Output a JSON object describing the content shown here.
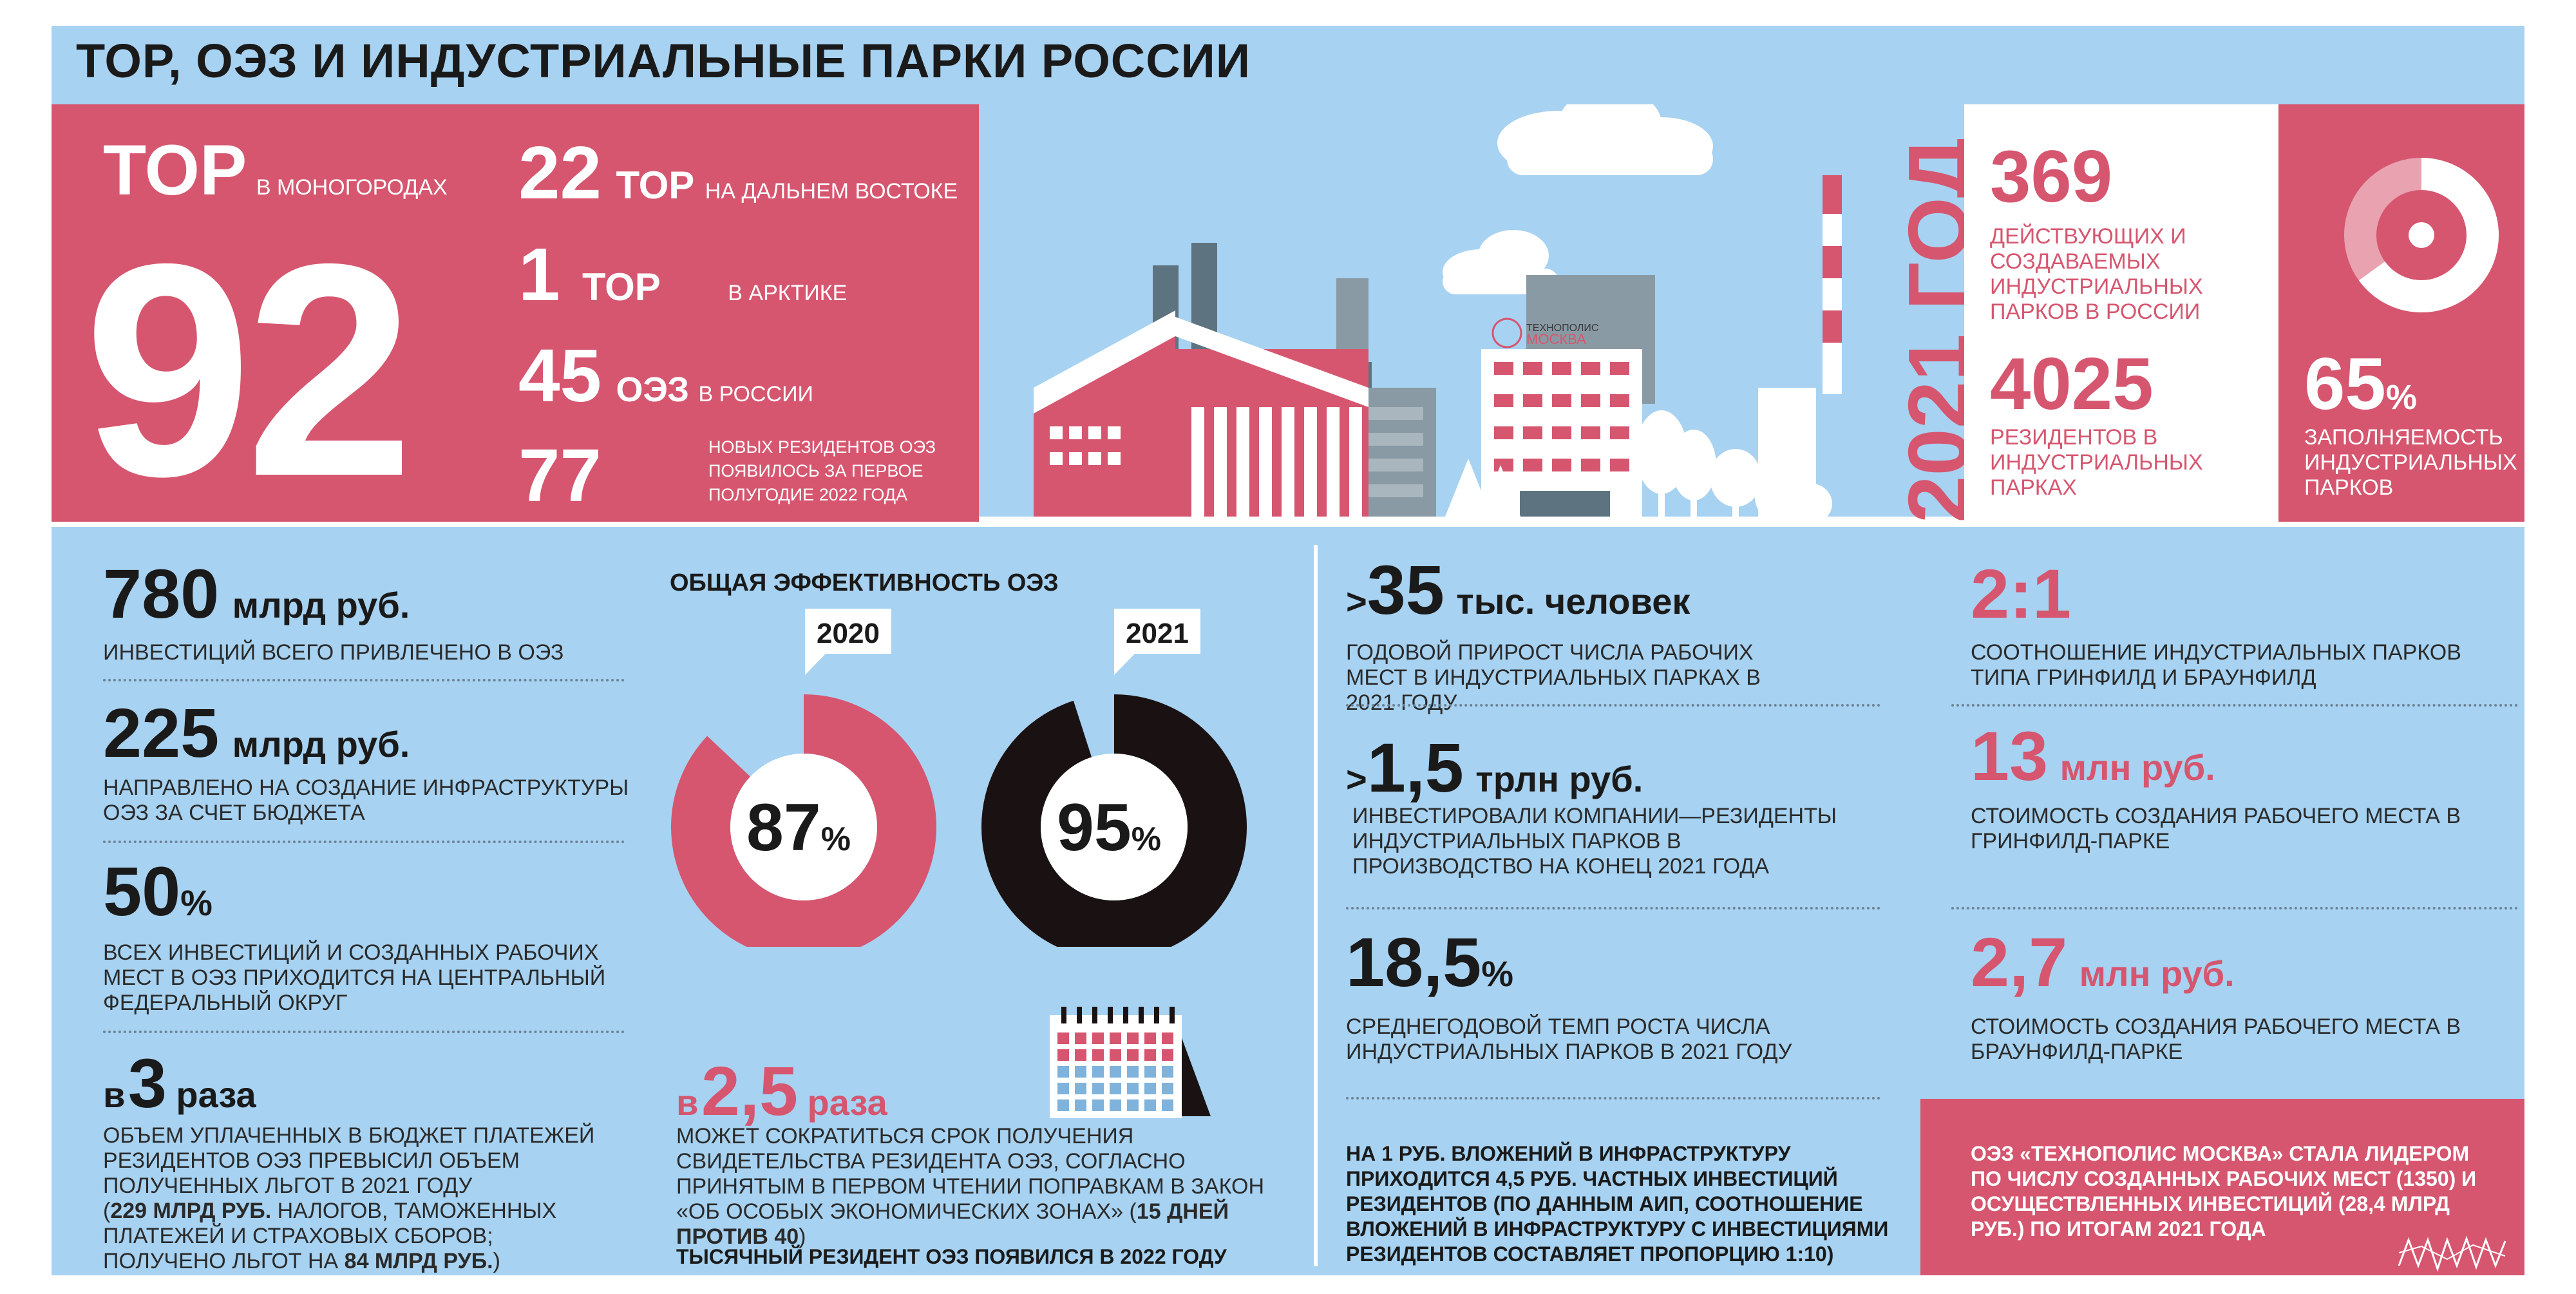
{
  "header": {
    "title": "ТОР, ОЭЗ И ИНДУСТРИАЛЬНЫЕ ПАРКИ РОССИИ"
  },
  "tor_block": {
    "label": "ТОР",
    "label_sub": "В МОНОГОРОДАХ",
    "big_number": "92",
    "rows": [
      {
        "value": "22",
        "unit": "ТОР",
        "desc": "НА ДАЛЬНЕМ ВОСТОКЕ"
      },
      {
        "value": "1",
        "unit": "ТОР",
        "desc": "В АРКТИКЕ"
      },
      {
        "value": "45",
        "unit": "ОЭЗ",
        "desc": "В РОССИИ"
      },
      {
        "value": "77",
        "unit": "",
        "desc": "НОВЫХ РЕЗИДЕНТОВ ОЭЗ ПОЯВИЛОСЬ ЗА ПЕРВОЕ ПОЛУГОДИЕ 2022 ГОДА"
      }
    ]
  },
  "illustration": {
    "building_sign": "ТЕХНОПОЛИС МОСКВА"
  },
  "year_block": {
    "year": "2021 ГОД"
  },
  "parks": {
    "value1": "369",
    "desc1": "ДЕЙСТВУЮЩИХ И СОЗДАВАЕМЫХ ИНДУСТРИАЛЬНЫХ ПАРКОВ В РОССИИ",
    "value2": "4025",
    "desc2": "РЕЗИДЕНТОВ В ИНДУСТРИАЛЬНЫХ ПАРКАХ"
  },
  "occupancy": {
    "value": "65",
    "unit": "%",
    "desc": "ЗАПОЛНЯЕМОСТЬ ИНДУСТРИАЛЬНЫХ ПАРКОВ",
    "fraction": 0.65
  },
  "col1": [
    {
      "value": "780",
      "unit": "млрд руб.",
      "desc": "ИНВЕСТИЦИЙ ВСЕГО ПРИВЛЕЧЕНО В ОЭЗ"
    },
    {
      "value": "225",
      "unit": "млрд руб.",
      "desc": "НАПРАВЛЕНО НА СОЗДАНИЕ ИНФРАСТРУКТУРЫ ОЭЗ ЗА СЧЕТ БЮДЖЕТА"
    },
    {
      "value": "50",
      "unit": "%",
      "desc": "ВСЕХ ИНВЕСТИЦИЙ И СОЗДАННЫХ РАБОЧИХ МЕСТ В ОЭЗ ПРИХОДИТСЯ НА ЦЕНТРАЛЬНЫЙ ФЕДЕРАЛЬНЫЙ ОКРУГ"
    }
  ],
  "times3": {
    "pre": "в",
    "value": "3",
    "unit": "раза",
    "desc": "ОБЪЕМ УПЛАЧЕННЫХ В БЮДЖЕТ ПЛАТЕЖЕЙ РЕЗИДЕНТОВ ОЭЗ ПРЕВЫСИЛ ОБЪЕМ ПОЛУЧЕННЫХ ЛЬГОТ В 2021 ГОДУ",
    "note_a": "(",
    "note_b": "229 МЛРД РУБ.",
    "note_c": " НАЛОГОВ, ТАМОЖЕННЫХ ПЛАТЕЖЕЙ И СТРАХОВЫХ СБОРОВ; ПОЛУЧЕНО ЛЬГОТ НА ",
    "note_d": "84 МЛРД РУБ.",
    "note_e": ")"
  },
  "efficiency": {
    "title": "ОБЩАЯ ЭФФЕКТИВНОСТЬ ОЭЗ",
    "items": [
      {
        "year": "2020",
        "value": "87",
        "unit": "%",
        "fraction": 0.87
      },
      {
        "year": "2021",
        "value": "95",
        "unit": "%",
        "fraction": 0.95
      }
    ]
  },
  "times25": {
    "pre": "в",
    "value": "2,5",
    "unit": "раза",
    "desc_a": "МОЖЕТ СОКРАТИТЬСЯ СРОК ПОЛУЧЕНИЯ СВИДЕТЕЛЬСТВА РЕЗИДЕНТА ОЭЗ, СОГЛАСНО ПРИНЯТЫМ В ПЕРВОМ ЧТЕНИИ ПОПРАВКАМ В ЗАКОН «ОБ ОСОБЫХ ЭКОНОМИЧЕСКИХ ЗОНАХ» (",
    "desc_b": "15 ДНЕЙ ПРОТИВ 40",
    "desc_c": ")",
    "footer": "ТЫСЯЧНЫЙ РЕЗИДЕНТ ОЭЗ ПОЯВИЛСЯ В 2022 ГОДУ"
  },
  "col3": [
    {
      "pre": ">",
      "value": "35",
      "unit": "тыс. человек",
      "desc": "ГОДОВОЙ ПРИРОСТ ЧИСЛА РАБОЧИХ МЕСТ В ИНДУСТРИАЛЬНЫХ ПАРКАХ В 2021 ГОДУ"
    },
    {
      "pre": ">",
      "value": "1,5",
      "unit": "трлн руб.",
      "desc": "ИНВЕСТИРОВАЛИ КОМПАНИИ—РЕЗИДЕНТЫ ИНДУСТРИАЛЬНЫХ ПАРКОВ В ПРОИЗВОДСТВО НА КОНЕЦ 2021 ГОДА"
    },
    {
      "pre": "",
      "value": "18,5",
      "unit": "%",
      "desc": "СРЕДНЕГОДОВОЙ ТЕМП РОСТА ЧИСЛА ИНДУСТРИАЛЬНЫХ ПАРКОВ В 2021 ГОДУ"
    }
  ],
  "col3_note": "НА 1 РУБ. ВЛОЖЕНИЙ В ИНФРАСТРУКТУРУ ПРИХОДИТСЯ 4,5 РУБ. ЧАСТНЫХ ИНВЕСТИЦИЙ РЕЗИДЕНТОВ (ПО ДАННЫМ АИП, СООТНОШЕНИЕ ВЛОЖЕНИЙ В ИНФРАСТРУКТУРУ С ИНВЕСТИЦИЯМИ РЕЗИДЕНТОВ СОСТАВЛЯЕТ ПРОПОРЦИЮ 1:10)",
  "col4": [
    {
      "value": "2:1",
      "unit": "",
      "desc": "СООТНОШЕНИЕ ИНДУСТРИАЛЬНЫХ ПАРКОВ ТИПА ГРИНФИЛД И БРАУНФИЛД"
    },
    {
      "value": "13",
      "unit": "млн руб.",
      "desc": "СТОИМОСТЬ СОЗДАНИЯ РАБОЧЕГО МЕСТА В ГРИНФИЛД-ПАРКЕ"
    },
    {
      "value": "2,7",
      "unit": "млн руб.",
      "desc": "СТОИМОСТЬ СОЗДАНИЯ РАБОЧЕГО МЕСТА В БРАУНФИЛД-ПАРКЕ"
    }
  ],
  "leader": {
    "text": "ОЭЗ «ТЕХНОПОЛИС МОСКВА» СТАЛА ЛИДЕРОМ ПО ЧИСЛУ СОЗДАННЫХ РАБОЧИХ МЕСТ (1350) И ОСУЩЕСТВЛЕННЫХ ИНВЕСТИЦИЙ (28,4 МЛРД РУБ.) ПО ИТОГАМ 2021 ГОДА"
  },
  "colors": {
    "pink": "#d6566f",
    "blue": "#a7d2f1",
    "dark": "#1a1212",
    "white": "#ffffff"
  }
}
